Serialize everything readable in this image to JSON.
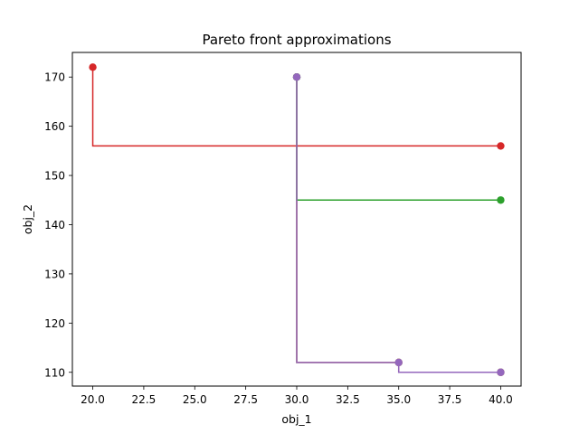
{
  "chart_data": {
    "type": "line",
    "title": "Pareto front approximations",
    "xlabel": "obj_1",
    "ylabel": "obj_2",
    "xlim": [
      19.0,
      41.0
    ],
    "ylim": [
      107.2,
      175.0
    ],
    "xticks": [
      "20.0",
      "22.5",
      "25.0",
      "27.5",
      "30.0",
      "32.5",
      "35.0",
      "37.5",
      "40.0"
    ],
    "yticks": [
      "110",
      "120",
      "130",
      "140",
      "150",
      "160",
      "170"
    ],
    "grid": false,
    "series": [
      {
        "color": "#1f77b4",
        "points": [
          [
            30,
            170
          ],
          [
            35,
            112
          ],
          [
            40,
            110
          ]
        ],
        "step_path": [
          [
            30,
            170
          ],
          [
            30,
            112
          ],
          [
            35,
            112
          ],
          [
            35,
            110
          ],
          [
            40,
            110
          ]
        ]
      },
      {
        "color": "#ff7f0e",
        "points": [
          [
            30,
            170
          ],
          [
            35,
            112
          ],
          [
            40,
            110
          ]
        ],
        "step_path": [
          [
            30,
            170
          ],
          [
            30,
            112
          ],
          [
            35,
            112
          ],
          [
            35,
            110
          ],
          [
            40,
            110
          ]
        ]
      },
      {
        "color": "#2ca02c",
        "points": [
          [
            30,
            170
          ],
          [
            40,
            145
          ]
        ],
        "step_path": [
          [
            30,
            170
          ],
          [
            30,
            145
          ],
          [
            40,
            145
          ]
        ]
      },
      {
        "color": "#d62728",
        "points": [
          [
            20,
            172
          ],
          [
            40,
            156
          ]
        ],
        "step_path": [
          [
            20,
            172
          ],
          [
            20,
            156
          ],
          [
            40,
            156
          ]
        ]
      },
      {
        "color": "#9467bd",
        "points": [
          [
            30,
            170
          ],
          [
            35,
            112
          ],
          [
            40,
            110
          ]
        ],
        "step_path": [
          [
            30,
            170
          ],
          [
            30,
            112
          ],
          [
            35,
            112
          ],
          [
            35,
            110
          ],
          [
            40,
            110
          ]
        ]
      }
    ]
  }
}
